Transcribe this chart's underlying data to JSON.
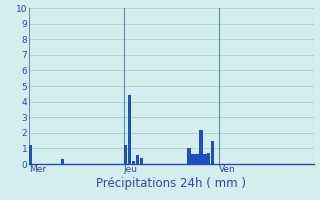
{
  "title": "Précipitations 24h ( mm )",
  "background_color": "#d4eeed",
  "grid_color": "#aacfcc",
  "bar_color": "#1a50c0",
  "ylim": [
    0,
    10
  ],
  "yticks": [
    0,
    1,
    2,
    3,
    4,
    5,
    6,
    7,
    8,
    9,
    10
  ],
  "day_labels": [
    "Mer",
    "Jeu",
    "Ven"
  ],
  "n_bars": 72,
  "values": [
    1.2,
    0.0,
    0.0,
    0.0,
    0.0,
    0.0,
    0.0,
    0.0,
    0.3,
    0.0,
    0.0,
    0.0,
    0.0,
    0.0,
    0.0,
    0.0,
    0.0,
    0.0,
    0.0,
    0.0,
    0.0,
    0.0,
    0.0,
    0.0,
    1.2,
    4.4,
    0.2,
    0.55,
    0.4,
    0.0,
    0.0,
    0.0,
    0.0,
    0.0,
    0.0,
    0.0,
    0.0,
    0.0,
    0.0,
    0.0,
    1.0,
    0.65,
    0.65,
    2.2,
    0.65,
    0.7,
    1.5,
    0.0,
    0.0,
    0.0,
    0.0,
    0.0,
    0.0,
    0.0,
    0.0,
    0.0,
    0.0,
    0.0,
    0.0,
    0.0,
    0.0,
    0.0,
    0.0,
    0.0,
    0.0,
    0.0,
    0.0,
    0.0,
    0.0,
    0.0,
    0.0,
    0.0
  ],
  "vline_positions": [
    0,
    24,
    48,
    72
  ],
  "vline_color": "#6688aa",
  "tick_fontsize": 6.5,
  "label_fontsize": 8.5,
  "tick_color": "#3344aa"
}
